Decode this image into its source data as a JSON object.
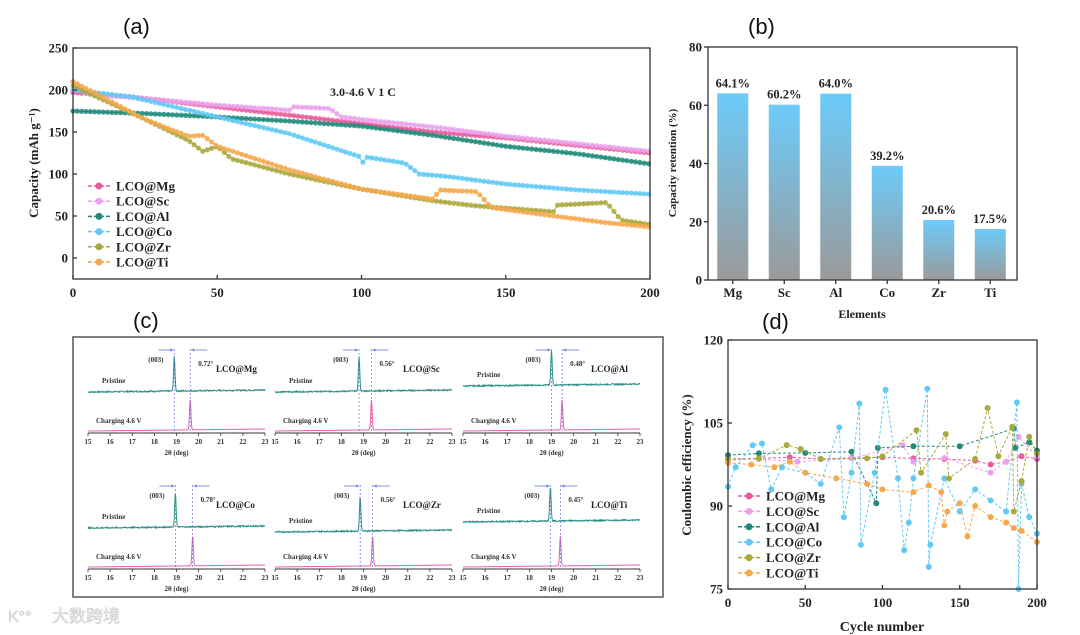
{
  "panels": {
    "a": "(a)",
    "b": "(b)",
    "c": "(c)",
    "d": "(d)"
  },
  "colors": {
    "LCO@Mg": "#ea5a9c",
    "LCO@Sc": "#eaa2ec",
    "LCO@Al": "#1f8a7a",
    "LCO@Co": "#62c9f4",
    "LCO@Zr": "#a9a83c",
    "LCO@Ti": "#f5a84c",
    "bar_top": "#6ccbfa",
    "bar_bottom": "#9a9a9a",
    "xrd_pristine": "#2a8f86",
    "xrd_charged": "#e85fb3",
    "guide": "#5a78e0"
  },
  "watermark": "大数跨境",
  "chart_data": [
    {
      "id": "a",
      "type": "line",
      "xlabel": "",
      "ylabel": "Capacity (mAh g⁻¹)",
      "xlim": [
        0,
        200
      ],
      "ylim": [
        -25,
        250
      ],
      "xticks": [
        0,
        50,
        100,
        150,
        200
      ],
      "yticks": [
        0,
        50,
        100,
        150,
        200,
        250
      ],
      "annotation": "3.0-4.6 V     1 C",
      "legend_position": "bottom-left",
      "series": [
        {
          "name": "LCO@Mg",
          "points": [
            [
              0,
              197
            ],
            [
              20,
              192
            ],
            [
              50,
              180
            ],
            [
              75,
              170
            ],
            [
              100,
              160
            ],
            [
              125,
              150
            ],
            [
              150,
              143
            ],
            [
              175,
              134
            ],
            [
              200,
              125
            ]
          ]
        },
        {
          "name": "LCO@Sc",
          "points": [
            [
              0,
              210
            ],
            [
              5,
              195
            ],
            [
              25,
              190
            ],
            [
              50,
              182
            ],
            [
              75,
              176
            ],
            [
              76,
              180
            ],
            [
              89,
              178
            ],
            [
              93,
              168
            ],
            [
              100,
              165
            ],
            [
              125,
              156
            ],
            [
              150,
              145
            ],
            [
              175,
              136
            ],
            [
              200,
              127
            ]
          ]
        },
        {
          "name": "LCO@Al",
          "points": [
            [
              0,
              175
            ],
            [
              25,
              172
            ],
            [
              50,
              168
            ],
            [
              75,
              163
            ],
            [
              100,
              157
            ],
            [
              125,
              146
            ],
            [
              150,
              133
            ],
            [
              175,
              124
            ],
            [
              200,
              112
            ]
          ]
        },
        {
          "name": "LCO@Co",
          "points": [
            [
              0,
              200
            ],
            [
              20,
              192
            ],
            [
              35,
              180
            ],
            [
              50,
              168
            ],
            [
              75,
              148
            ],
            [
              100,
              120
            ],
            [
              101,
              108
            ],
            [
              102,
              120
            ],
            [
              115,
              113
            ],
            [
              120,
              100
            ],
            [
              130,
              97
            ],
            [
              150,
              88
            ],
            [
              175,
              81
            ],
            [
              200,
              76
            ]
          ]
        },
        {
          "name": "LCO@Zr",
          "points": [
            [
              0,
              205
            ],
            [
              25,
              165
            ],
            [
              40,
              140
            ],
            [
              45,
              127
            ],
            [
              50,
              133
            ],
            [
              55,
              118
            ],
            [
              75,
              100
            ],
            [
              100,
              82
            ],
            [
              125,
              68
            ],
            [
              140,
              62
            ],
            [
              167,
              55
            ],
            [
              168,
              63
            ],
            [
              185,
              66
            ],
            [
              190,
              45
            ],
            [
              200,
              40
            ]
          ]
        },
        {
          "name": "LCO@Ti",
          "points": [
            [
              0,
              210
            ],
            [
              25,
              165
            ],
            [
              40,
              145
            ],
            [
              45,
              146
            ],
            [
              50,
              133
            ],
            [
              75,
              105
            ],
            [
              100,
              82
            ],
            [
              125,
              70
            ],
            [
              127,
              81
            ],
            [
              140,
              79
            ],
            [
              145,
              60
            ],
            [
              160,
              53
            ],
            [
              185,
              42
            ],
            [
              200,
              37
            ]
          ]
        }
      ]
    },
    {
      "id": "b",
      "type": "bar",
      "xlabel": "Elements",
      "ylabel": "Capacity retention (%)",
      "ylim": [
        0,
        80
      ],
      "yticks": [
        0,
        20,
        40,
        60,
        80
      ],
      "categories": [
        "Mg",
        "Sc",
        "Al",
        "Co",
        "Zr",
        "Ti"
      ],
      "values": [
        64.1,
        60.2,
        64.0,
        39.2,
        20.6,
        17.5
      ],
      "data_labels": [
        "64.1%",
        "60.2%",
        "64.0%",
        "39.2%",
        "20.6%",
        "17.5%"
      ]
    },
    {
      "id": "c",
      "type": "line",
      "xlabel": "2θ (deg)",
      "xlim": [
        15,
        23
      ],
      "xticks": [
        15,
        16,
        17,
        18,
        19,
        20,
        21,
        22,
        23
      ],
      "peak_label": "(003)",
      "pristine_label": "Pristine",
      "charged_label": "Charging 4.6 V",
      "subplots": [
        {
          "sample": "LCO@Mg",
          "pristine_peak": 18.9,
          "charged_peak": 19.62,
          "shift": "0.72°"
        },
        {
          "sample": "LCO@Sc",
          "pristine_peak": 18.8,
          "charged_peak": 19.36,
          "shift": "0.56°"
        },
        {
          "sample": "LCO@Al",
          "pristine_peak": 19.0,
          "charged_peak": 19.48,
          "shift": "0.48°"
        },
        {
          "sample": "LCO@Co",
          "pristine_peak": 18.95,
          "charged_peak": 19.73,
          "shift": "0.78°"
        },
        {
          "sample": "LCO@Zr",
          "pristine_peak": 18.85,
          "charged_peak": 19.41,
          "shift": "0.56°"
        },
        {
          "sample": "LCO@Ti",
          "pristine_peak": 18.95,
          "charged_peak": 19.4,
          "shift": "0.45°"
        }
      ]
    },
    {
      "id": "d",
      "type": "scatter",
      "xlabel": "Cycle number",
      "ylabel": "Coulombic efficiency (%)",
      "xlim": [
        0,
        200
      ],
      "ylim": [
        75,
        120
      ],
      "xticks": [
        0,
        50,
        100,
        150,
        200
      ],
      "yticks": [
        75,
        90,
        105,
        120
      ],
      "legend_position": "bottom-left",
      "series": [
        {
          "name": "LCO@Mg",
          "points": [
            [
              0,
              98.5
            ],
            [
              20,
              98.6
            ],
            [
              40,
              98.8
            ],
            [
              60,
              98.5
            ],
            [
              80,
              98.7
            ],
            [
              100,
              98.8
            ],
            [
              120,
              98.6
            ],
            [
              140,
              98.5
            ],
            [
              160,
              98.2
            ],
            [
              170,
              97.5
            ],
            [
              180,
              98
            ],
            [
              190,
              99
            ],
            [
              200,
              98.5
            ]
          ]
        },
        {
          "name": "LCO@Sc",
          "points": [
            [
              0,
              98.3
            ],
            [
              20,
              98.5
            ],
            [
              45,
              98
            ],
            [
              80,
              98.6
            ],
            [
              113,
              101
            ],
            [
              120,
              98
            ],
            [
              140,
              98.7
            ],
            [
              170,
              96
            ],
            [
              180,
              98
            ],
            [
              188,
              102.5
            ],
            [
              200,
              99
            ]
          ]
        },
        {
          "name": "LCO@Al",
          "points": [
            [
              0,
              99.2
            ],
            [
              20,
              99.5
            ],
            [
              50,
              99.6
            ],
            [
              80,
              99.8
            ],
            [
              96,
              90.5
            ],
            [
              97,
              100.5
            ],
            [
              120,
              100.8
            ],
            [
              150,
              100.8
            ],
            [
              185,
              104
            ],
            [
              186,
              100.5
            ],
            [
              195,
              101.5
            ],
            [
              200,
              100
            ]
          ]
        },
        {
          "name": "LCO@Co",
          "points": [
            [
              0,
              93.5
            ],
            [
              5,
              97
            ],
            [
              16,
              101
            ],
            [
              22,
              101.3
            ],
            [
              28,
              93
            ],
            [
              35,
              97
            ],
            [
              50,
              96
            ],
            [
              60,
              94
            ],
            [
              72,
              104.2
            ],
            [
              75,
              88
            ],
            [
              80,
              96
            ],
            [
              85,
              108.5
            ],
            [
              86,
              83
            ],
            [
              95,
              96
            ],
            [
              102,
              111
            ],
            [
              110,
              95
            ],
            [
              114,
              82
            ],
            [
              117,
              87
            ],
            [
              120,
              95
            ],
            [
              129,
              111.2
            ],
            [
              130,
              79
            ],
            [
              131,
              83
            ],
            [
              140,
              95
            ],
            [
              150,
              89
            ],
            [
              160,
              93
            ],
            [
              170,
              91
            ],
            [
              180,
              89
            ],
            [
              187,
              108.7
            ],
            [
              188,
              75
            ],
            [
              190,
              94
            ],
            [
              195,
              88
            ],
            [
              200,
              85
            ]
          ]
        },
        {
          "name": "LCO@Zr",
          "points": [
            [
              0,
              98.4
            ],
            [
              20,
              98.6
            ],
            [
              38,
              101
            ],
            [
              47,
              100.3
            ],
            [
              60,
              98.5
            ],
            [
              90,
              98.6
            ],
            [
              100,
              99
            ],
            [
              122,
              103.7
            ],
            [
              125,
              96
            ],
            [
              141,
              103
            ],
            [
              143,
              95
            ],
            [
              160,
              98.5
            ],
            [
              168,
              107.7
            ],
            [
              175,
              99
            ],
            [
              184,
              104.3
            ],
            [
              185,
              89
            ],
            [
              190,
              94.5
            ],
            [
              195,
              102.5
            ],
            [
              200,
              99.5
            ]
          ]
        },
        {
          "name": "LCO@Ti",
          "points": [
            [
              0,
              97.8
            ],
            [
              15,
              97.5
            ],
            [
              30,
              97
            ],
            [
              40,
              98
            ],
            [
              50,
              96
            ],
            [
              70,
              95
            ],
            [
              90,
              94
            ],
            [
              100,
              93
            ],
            [
              120,
              92.5
            ],
            [
              130,
              93.7
            ],
            [
              138,
              92.5
            ],
            [
              140,
              86.5
            ],
            [
              142,
              89
            ],
            [
              150,
              90.5
            ],
            [
              155,
              84.5
            ],
            [
              160,
              90
            ],
            [
              170,
              88
            ],
            [
              180,
              87
            ],
            [
              185,
              86
            ],
            [
              190,
              85.5
            ],
            [
              200,
              83.5
            ]
          ]
        }
      ]
    }
  ]
}
